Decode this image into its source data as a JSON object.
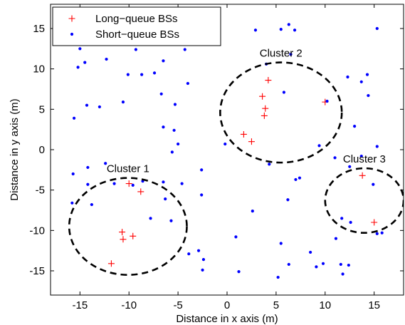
{
  "chart_data": {
    "type": "scatter",
    "xlabel": "Distance in x axis (m)",
    "ylabel": "Distance in y axis (m)",
    "xlim": [
      -18,
      18
    ],
    "ylim": [
      -18,
      18
    ],
    "xticks": [
      -15,
      -10,
      -5,
      0,
      5,
      10,
      15
    ],
    "yticks": [
      -15,
      -10,
      -5,
      0,
      5,
      10,
      15
    ],
    "grid": false,
    "legend_position": "top-left",
    "series": [
      {
        "name": "Long−queue BSs",
        "marker": "plus",
        "color": "#ff0000",
        "points": [
          [
            -10.0,
            -4.2
          ],
          [
            -8.8,
            -5.2
          ],
          [
            -10.7,
            -10.2
          ],
          [
            -10.6,
            -11.1
          ],
          [
            -9.6,
            -10.7
          ],
          [
            -11.8,
            -14.1
          ],
          [
            1.7,
            1.9
          ],
          [
            2.5,
            1.0
          ],
          [
            3.6,
            6.6
          ],
          [
            4.2,
            8.6
          ],
          [
            3.9,
            5.1
          ],
          [
            3.8,
            4.2
          ],
          [
            10.0,
            5.9
          ],
          [
            13.8,
            -3.2
          ],
          [
            15.0,
            -9.0
          ]
        ]
      },
      {
        "name": "Short−queue BSs",
        "marker": "dot",
        "color": "#0000ff",
        "points": [
          [
            -15.6,
            3.9
          ],
          [
            -15.2,
            10.2
          ],
          [
            -15.0,
            12.5
          ],
          [
            -14.5,
            10.8
          ],
          [
            -14.3,
            5.5
          ],
          [
            -13.0,
            5.3
          ],
          [
            -12.3,
            11.2
          ],
          [
            -10.6,
            5.9
          ],
          [
            -10.1,
            9.3
          ],
          [
            -9.3,
            12.4
          ],
          [
            -8.7,
            9.3
          ],
          [
            -7.4,
            9.5
          ],
          [
            -6.7,
            6.9
          ],
          [
            -6.5,
            2.8
          ],
          [
            -6.5,
            11.0
          ],
          [
            -5.3,
            5.6
          ],
          [
            -5.4,
            2.4
          ],
          [
            -5.0,
            0.7
          ],
          [
            -4.3,
            12.4
          ],
          [
            -4.0,
            8.2
          ],
          [
            -15.7,
            -3.0
          ],
          [
            -15.8,
            -6.6
          ],
          [
            -14.2,
            -2.2
          ],
          [
            -14.2,
            -4.3
          ],
          [
            -13.8,
            -6.8
          ],
          [
            -12.4,
            -1.7
          ],
          [
            -11.5,
            -4.2
          ],
          [
            -9.6,
            -4.4
          ],
          [
            -8.6,
            -3.9
          ],
          [
            -7.8,
            -8.5
          ],
          [
            -6.5,
            -4.0
          ],
          [
            -6.3,
            -6.1
          ],
          [
            -5.6,
            -0.3
          ],
          [
            -5.7,
            -8.8
          ],
          [
            -4.6,
            -4.2
          ],
          [
            -3.9,
            -12.9
          ],
          [
            -2.9,
            -12.5
          ],
          [
            -2.6,
            -5.6
          ],
          [
            -2.6,
            -2.5
          ],
          [
            -2.4,
            -13.6
          ],
          [
            -2.5,
            -14.9
          ],
          [
            -0.2,
            0.7
          ],
          [
            0.9,
            -10.8
          ],
          [
            1.2,
            -15.1
          ],
          [
            2.6,
            -7.6
          ],
          [
            4.3,
            -1.8
          ],
          [
            5.2,
            -15.8
          ],
          [
            5.5,
            -11.6
          ],
          [
            6.2,
            -6.2
          ],
          [
            6.3,
            -14.2
          ],
          [
            7.0,
            -3.7
          ],
          [
            7.4,
            -3.5
          ],
          [
            8.5,
            -12.7
          ],
          [
            9.1,
            -14.5
          ],
          [
            9.8,
            -14.1
          ],
          [
            9.4,
            0.5
          ],
          [
            2.9,
            14.8
          ],
          [
            4.0,
            10.6
          ],
          [
            5.5,
            14.9
          ],
          [
            5.8,
            7.1
          ],
          [
            6.3,
            15.5
          ],
          [
            6.5,
            11.8
          ],
          [
            6.9,
            14.8
          ],
          [
            10.2,
            6.0
          ],
          [
            11.0,
            -1.0
          ],
          [
            11.1,
            -11.0
          ],
          [
            11.6,
            -14.2
          ],
          [
            11.7,
            -8.5
          ],
          [
            11.8,
            -15.4
          ],
          [
            12.3,
            9.0
          ],
          [
            12.4,
            -14.3
          ],
          [
            12.5,
            -2.1
          ],
          [
            12.6,
            -9.0
          ],
          [
            13.0,
            2.9
          ],
          [
            13.7,
            8.4
          ],
          [
            13.7,
            -0.8
          ],
          [
            14.3,
            9.3
          ],
          [
            14.4,
            6.7
          ],
          [
            14.9,
            -4.3
          ],
          [
            15.3,
            15.0
          ],
          [
            15.3,
            0.4
          ],
          [
            15.8,
            -10.3
          ],
          [
            15.3,
            -10.4
          ]
        ]
      }
    ],
    "clusters": [
      {
        "label": "Cluster 1",
        "center": [
          -10.1,
          -9.5
        ],
        "radius": 6.0
      },
      {
        "label": "Cluster 2",
        "center": [
          5.5,
          4.6
        ],
        "radius": 6.2
      },
      {
        "label": "Cluster 3",
        "center": [
          14.0,
          -6.3
        ],
        "radius": 4.0
      }
    ]
  }
}
